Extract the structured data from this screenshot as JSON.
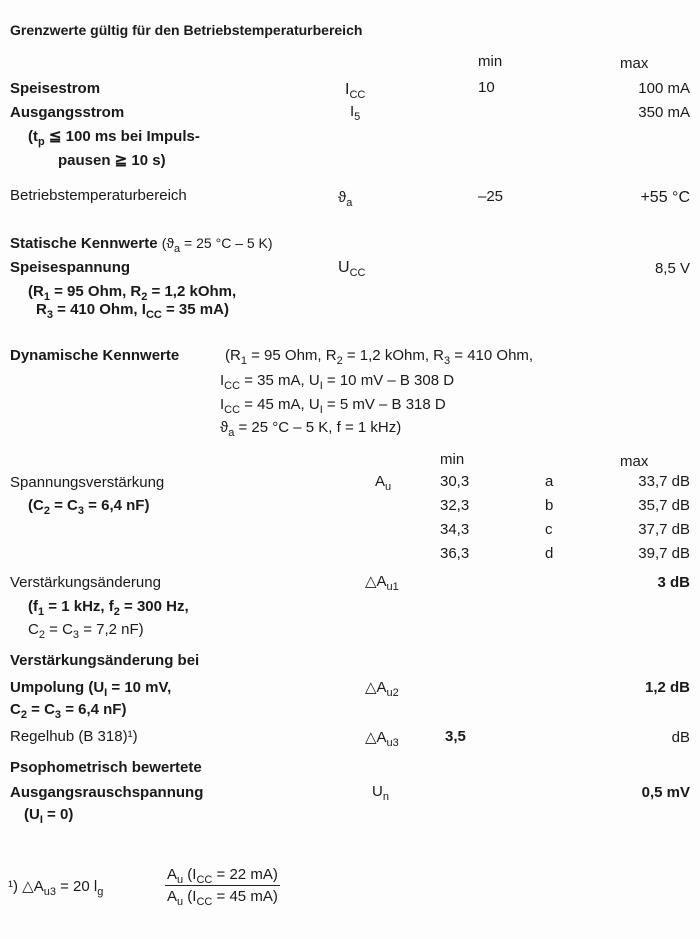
{
  "title": "Grenzwerte gültig für den Betriebstemperaturbereich",
  "limits": {
    "header_min": "min",
    "header_max": "max",
    "rows": [
      {
        "label": "Speisestrom",
        "symbol": [
          [
            "I",
            ""
          ],
          [
            "",
            "CC"
          ]
        ],
        "min": "10",
        "max": "100 mA"
      },
      {
        "label": "Ausgangsstrom",
        "symbol": [
          [
            "I",
            ""
          ],
          [
            "",
            "5"
          ]
        ],
        "min": "",
        "max": "350 mA"
      },
      {
        "label": "Betriebstemperaturbereich",
        "symbol": [
          [
            "ϑ",
            ""
          ],
          [
            "",
            "a"
          ]
        ],
        "min": "–25",
        "max": "+55 °C"
      }
    ],
    "output_current_note": [
      [
        [
          "(t",
          ""
        ],
        [
          "",
          "p"
        ],
        [
          " ≦ 100 ms bei Impuls-",
          ""
        ]
      ],
      [
        [
          "pausen ≧ 10 s)",
          ""
        ]
      ]
    ]
  },
  "static": {
    "heading": "Statische Kennwerte",
    "heading_cond": [
      [
        "(ϑ",
        ""
      ],
      [
        "",
        "a"
      ],
      [
        " = 25 °C – 5 K)",
        ""
      ]
    ],
    "label": "Speisespannung",
    "symbol": [
      [
        "U",
        ""
      ],
      [
        "",
        "CC"
      ]
    ],
    "max": "8,5 V",
    "conditions": [
      [
        [
          "(R",
          ""
        ],
        [
          "",
          "1"
        ],
        [
          " = 95 Ohm, R",
          ""
        ],
        [
          "",
          "2"
        ],
        [
          " = 1,2 kOhm,",
          ""
        ]
      ],
      [
        [
          "R",
          ""
        ],
        [
          "",
          "3"
        ],
        [
          " = 410 Ohm, I",
          ""
        ],
        [
          "",
          "CC"
        ],
        [
          " = 35 mA)",
          ""
        ]
      ]
    ]
  },
  "dynamic": {
    "heading": "Dynamische Kennwerte",
    "conditions": [
      [
        [
          "(R",
          ""
        ],
        [
          "",
          "1"
        ],
        [
          " = 95 Ohm, R",
          ""
        ],
        [
          "",
          "2"
        ],
        [
          " = 1,2 kOhm, R",
          ""
        ],
        [
          "",
          "3"
        ],
        [
          " = 410 Ohm,",
          ""
        ]
      ],
      [
        [
          "I",
          ""
        ],
        [
          "",
          "CC"
        ],
        [
          " = 35 mA, U",
          ""
        ],
        [
          "",
          "I"
        ],
        [
          " = 10 mV – B 308 D",
          ""
        ]
      ],
      [
        [
          "I",
          ""
        ],
        [
          "",
          "CC"
        ],
        [
          " = 45 mA, U",
          ""
        ],
        [
          "",
          "I"
        ],
        [
          " =  5 mV – B 318 D",
          ""
        ]
      ],
      [
        [
          "ϑ",
          ""
        ],
        [
          "",
          "a"
        ],
        [
          " = 25 °C – 5 K, f = 1 kHz)",
          ""
        ]
      ]
    ],
    "header_min": "min",
    "header_max": "max",
    "gain": {
      "label": "Spannungsverstärkung",
      "cond": [
        [
          "(C",
          ""
        ],
        [
          "",
          "2"
        ],
        [
          " = C",
          ""
        ],
        [
          "",
          "3"
        ],
        [
          " = 6,4 nF)",
          ""
        ]
      ],
      "symbol": [
        [
          "A",
          ""
        ],
        [
          "",
          "u"
        ]
      ],
      "groups": [
        {
          "min": "30,3",
          "group": "a",
          "max": "33,7 dB"
        },
        {
          "min": "32,3",
          "group": "b",
          "max": "35,7 dB"
        },
        {
          "min": "34,3",
          "group": "c",
          "max": "37,7 dB"
        },
        {
          "min": "36,3",
          "group": "d",
          "max": "39,7 dB"
        }
      ]
    },
    "gain_change": {
      "label": "Verstärkungsänderung",
      "cond": [
        [
          [
            "(f",
            ""
          ],
          [
            "",
            "1"
          ],
          [
            " = 1 kHz, f",
            ""
          ],
          [
            "",
            "2"
          ],
          [
            " = 300 Hz,",
            ""
          ]
        ],
        [
          [
            "C",
            ""
          ],
          [
            "",
            "2"
          ],
          [
            " = C",
            ""
          ],
          [
            "",
            "3"
          ],
          [
            " = 7,2 nF)",
            ""
          ]
        ]
      ],
      "symbol": [
        [
          "△A",
          ""
        ],
        [
          "",
          "u1"
        ]
      ],
      "max": "3 dB"
    },
    "polarity": {
      "label1": "Verstärkungsänderung bei",
      "label2": [
        [
          "Umpolung (U",
          ""
        ],
        [
          "",
          "I"
        ],
        [
          " = 10 mV,",
          ""
        ]
      ],
      "label3": [
        [
          "C",
          ""
        ],
        [
          "",
          "2"
        ],
        [
          " = C",
          ""
        ],
        [
          "",
          "3"
        ],
        [
          " = 6,4 nF)",
          ""
        ]
      ],
      "symbol": [
        [
          "△A",
          ""
        ],
        [
          "",
          "u2"
        ]
      ],
      "max": "1,2 dB"
    },
    "control": {
      "label": "Regelhub (B 318)¹)",
      "symbol": [
        [
          "△A",
          ""
        ],
        [
          "",
          "u3"
        ]
      ],
      "min": "3,5",
      "unit": "dB"
    },
    "noise": {
      "label1": "Psophometrisch bewertete",
      "label2": "Ausgangsrauschspannung",
      "cond": [
        [
          "(U",
          ""
        ],
        [
          "",
          "I"
        ],
        [
          " = 0)",
          ""
        ]
      ],
      "symbol": [
        [
          "U",
          ""
        ],
        [
          "",
          "n"
        ]
      ],
      "max": "0,5 mV"
    }
  },
  "footnote": {
    "lhs": [
      [
        "¹)  △A",
        ""
      ],
      [
        "",
        "u3"
      ],
      [
        " = 20 l",
        ""
      ],
      [
        "",
        "g"
      ]
    ],
    "numerator": [
      [
        "A",
        ""
      ],
      [
        "",
        "u"
      ],
      [
        " (I",
        ""
      ],
      [
        "",
        "CC"
      ],
      [
        " = 22 mA)",
        ""
      ]
    ],
    "denominator": [
      [
        "A",
        ""
      ],
      [
        "",
        "u"
      ],
      [
        " (I",
        ""
      ],
      [
        "",
        "CC"
      ],
      [
        " = 45 mA)",
        ""
      ]
    ]
  }
}
